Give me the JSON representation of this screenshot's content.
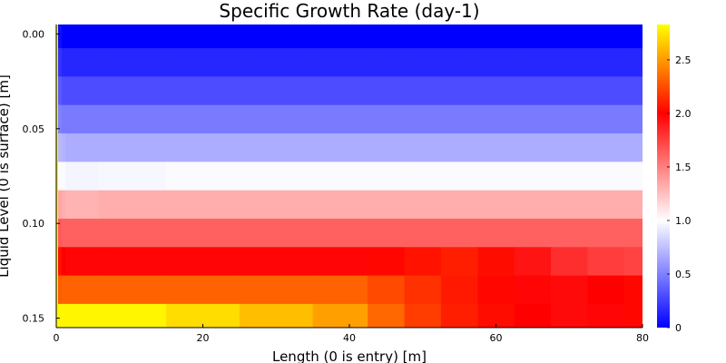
{
  "chart_data": {
    "type": "heatmap",
    "title": "Specific Growth Rate (day-1)",
    "xlabel": "Length (0 is entry) [m]",
    "ylabel": "Liquid Level (0 is surface) [m]",
    "x_ticks": [
      0,
      20,
      40,
      60,
      80
    ],
    "x_tick_labels": [
      "0",
      "20",
      "40",
      "60",
      "80"
    ],
    "y_ticks": [
      0.0,
      0.05,
      0.1,
      0.15
    ],
    "y_tick_labels": [
      "0.00",
      "0.05",
      "0.10",
      "0.15"
    ],
    "xlim": [
      0,
      80
    ],
    "ylim": [
      -0.005,
      0.155
    ],
    "y_inverted": true,
    "grid": false,
    "x_columns": [
      0,
      0.5,
      1,
      1.5,
      10,
      20,
      30,
      40,
      45,
      50,
      55,
      60,
      65,
      70,
      75,
      80
    ],
    "y_rows": [
      0.0,
      0.015,
      0.03,
      0.045,
      0.06,
      0.075,
      0.09,
      0.105,
      0.12,
      0.135,
      0.15
    ],
    "values": [
      [
        2.8,
        0.05,
        0.0,
        0.0,
        0.0,
        0.0,
        0.0,
        0.0,
        0.0,
        0.0,
        0.0,
        0.0,
        0.0,
        0.0,
        0.0,
        0.0
      ],
      [
        2.8,
        0.2,
        0.15,
        0.15,
        0.15,
        0.15,
        0.15,
        0.15,
        0.15,
        0.15,
        0.15,
        0.15,
        0.15,
        0.15,
        0.15,
        0.15
      ],
      [
        2.8,
        0.35,
        0.3,
        0.3,
        0.3,
        0.3,
        0.3,
        0.3,
        0.3,
        0.3,
        0.3,
        0.3,
        0.3,
        0.3,
        0.3,
        0.3
      ],
      [
        2.8,
        0.5,
        0.48,
        0.48,
        0.48,
        0.48,
        0.48,
        0.48,
        0.48,
        0.48,
        0.48,
        0.48,
        0.48,
        0.48,
        0.48,
        0.48
      ],
      [
        2.8,
        0.72,
        0.7,
        0.68,
        0.68,
        0.68,
        0.68,
        0.68,
        0.68,
        0.68,
        0.68,
        0.68,
        0.68,
        0.68,
        0.68,
        0.68
      ],
      [
        2.8,
        0.98,
        0.98,
        0.96,
        0.97,
        0.98,
        0.98,
        0.98,
        0.98,
        0.98,
        0.98,
        0.98,
        0.98,
        0.98,
        0.98,
        0.98
      ],
      [
        2.8,
        1.35,
        1.32,
        1.3,
        1.32,
        1.32,
        1.32,
        1.32,
        1.32,
        1.32,
        1.32,
        1.32,
        1.32,
        1.32,
        1.32,
        1.32
      ],
      [
        2.8,
        1.65,
        1.62,
        1.62,
        1.62,
        1.62,
        1.62,
        1.62,
        1.62,
        1.62,
        1.62,
        1.62,
        1.62,
        1.62,
        1.62,
        1.62
      ],
      [
        2.8,
        2.05,
        2.0,
        1.98,
        1.98,
        1.98,
        1.98,
        1.98,
        2.02,
        2.06,
        2.1,
        2.04,
        1.92,
        1.82,
        1.76,
        1.74
      ],
      [
        2.8,
        2.3,
        2.32,
        2.32,
        2.32,
        2.32,
        2.32,
        2.32,
        2.24,
        2.16,
        2.08,
        2.02,
        1.98,
        1.96,
        2.0,
        2.02
      ],
      [
        2.8,
        2.8,
        2.8,
        2.8,
        2.8,
        2.72,
        2.62,
        2.52,
        2.34,
        2.2,
        2.1,
        2.04,
        2.0,
        1.96,
        1.98,
        2.02
      ]
    ],
    "colorbar": {
      "min": 0,
      "max": 2.83,
      "ticks": [
        0,
        0.5,
        1.0,
        1.5,
        2.0,
        2.5
      ],
      "tick_labels": [
        "0",
        "0.5",
        "1.0",
        "1.5",
        "2.0",
        "2.5"
      ],
      "colormap": [
        "#0000ff",
        "#ffffff",
        "#ff0000",
        "#ffff00"
      ],
      "colormap_stops": [
        0,
        1.0,
        2.0,
        2.83
      ]
    }
  }
}
